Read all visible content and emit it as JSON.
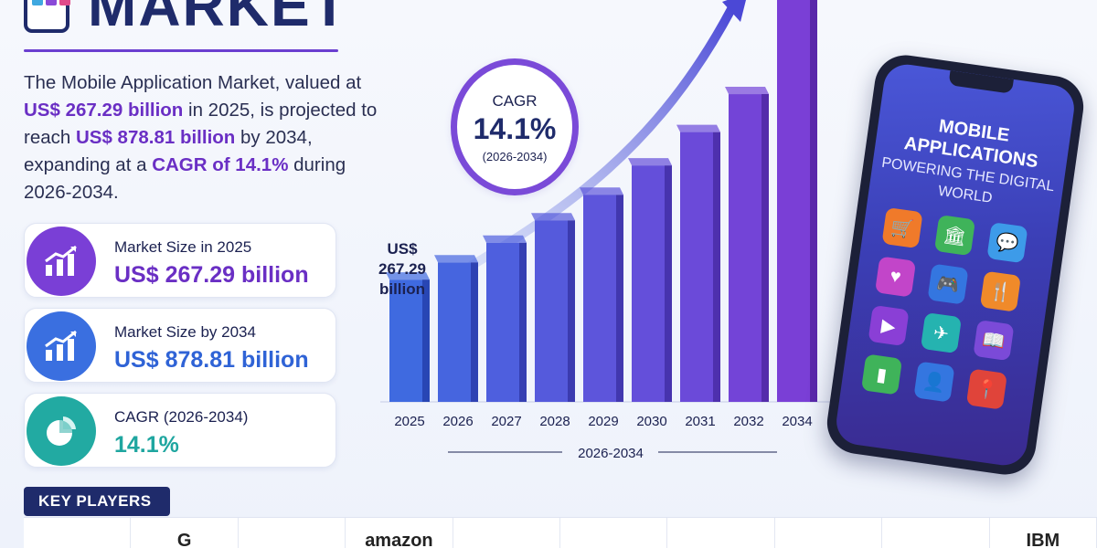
{
  "header": {
    "title": "MARKET"
  },
  "description": {
    "p1": "The Mobile Application Market, valued at ",
    "v1": "US$ 267.29 billion",
    "p2": " in 2025, is projected to reach ",
    "v2": "US$ 878.81 billion",
    "p3": " by 2034, expanding at a ",
    "v3": "CAGR of 14.1%",
    "p4": " during 2026-2034."
  },
  "stats": [
    {
      "label": "Market Size in 2025",
      "value": "US$ 267.29 billion",
      "color": "#6a2fc4",
      "icon": "bar-chart-growth-icon"
    },
    {
      "label": "Market Size by 2034",
      "value": "US$ 878.81 billion",
      "color": "#2f63d6",
      "icon": "bar-chart-growth-icon"
    },
    {
      "label": "CAGR (2026-2034)",
      "value": "14.1%",
      "color": "#1fa6a0",
      "icon": "pie-chart-icon"
    }
  ],
  "cagr_badge": {
    "title": "CAGR",
    "value": "14.1%",
    "period": "(2026-2034)"
  },
  "first_bar_label": "US$ 267.29 billion",
  "forecast_period": "2026-2034",
  "phone": {
    "title": "MOBILE APPLICATIONS",
    "subtitle": "POWERING THE DIGITAL WORLD",
    "apps": [
      {
        "icon": "cart-icon",
        "glyph": "🛒",
        "color": "#f07a2a"
      },
      {
        "icon": "bank-icon",
        "glyph": "🏛",
        "color": "#3fb35a"
      },
      {
        "icon": "chat-icon",
        "glyph": "💬",
        "color": "#3d9be9"
      },
      {
        "icon": "heart-icon",
        "glyph": "♥",
        "color": "#c245c9"
      },
      {
        "icon": "gamepad-icon",
        "glyph": "🎮",
        "color": "#3476e0"
      },
      {
        "icon": "fork-knife-icon",
        "glyph": "🍴",
        "color": "#f08a2a"
      },
      {
        "icon": "play-icon",
        "glyph": "▶",
        "color": "#8a3fd6"
      },
      {
        "icon": "plane-icon",
        "glyph": "✈",
        "color": "#25b3b0"
      },
      {
        "icon": "book-icon",
        "glyph": "📖",
        "color": "#7b4ad8"
      },
      {
        "icon": "stats-icon",
        "glyph": "▮",
        "color": "#3fb35a"
      },
      {
        "icon": "user-icon",
        "glyph": "👤",
        "color": "#3476e0"
      },
      {
        "icon": "location-pin-icon",
        "glyph": "📍",
        "color": "#e0443a"
      }
    ]
  },
  "key_players": {
    "label": "KEY PLAYERS",
    "logos": [
      "",
      "G",
      "",
      "amazon",
      "",
      "",
      "",
      "",
      "",
      "IBM"
    ]
  },
  "chart_data": {
    "type": "bar",
    "title": "",
    "xlabel": "",
    "ylabel": "",
    "categories": [
      "2025",
      "2026",
      "2027",
      "2028",
      "2029",
      "2030",
      "2031",
      "2032",
      "2034"
    ],
    "values": [
      267.29,
      305,
      348,
      397,
      453,
      517,
      590,
      673,
      878.81
    ],
    "ylim": [
      0,
      878.81
    ],
    "grid": false,
    "colors": {
      "start": "#3f6ae0",
      "end": "#7a3fd6"
    }
  }
}
